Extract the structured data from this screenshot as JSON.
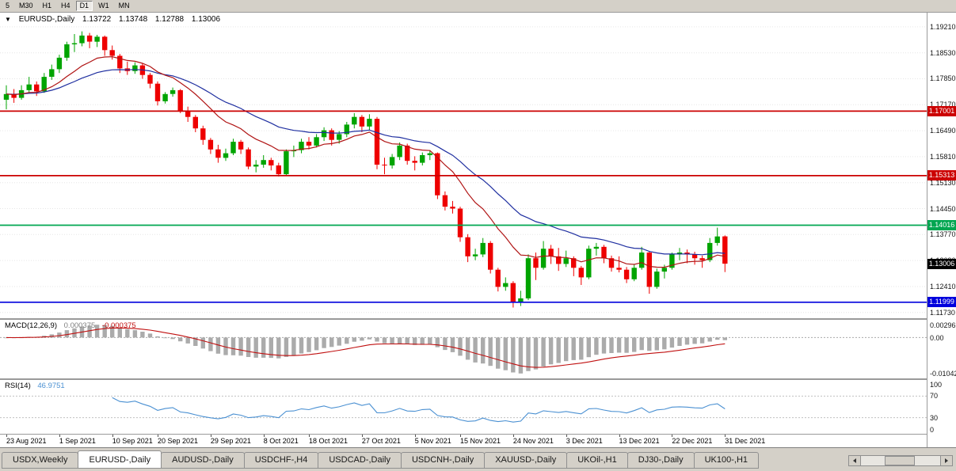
{
  "toolbar": {
    "timeframes": [
      {
        "label": "5",
        "active": false
      },
      {
        "label": "M30",
        "active": false
      },
      {
        "label": "H1",
        "active": false
      },
      {
        "label": "H4",
        "active": false
      },
      {
        "label": "D1",
        "active": true
      },
      {
        "label": "W1",
        "active": false
      },
      {
        "label": "MN",
        "active": false
      }
    ]
  },
  "quote_bar": {
    "symbol": "EURUSD-,Daily",
    "open": "1.13722",
    "high": "1.13748",
    "low": "1.12788",
    "close": "1.13006"
  },
  "price_axis": {
    "labels": [
      "1.19210",
      "1.18530",
      "1.17850",
      "1.17170",
      "1.16490",
      "1.15810",
      "1.15130",
      "1.14450",
      "1.13770",
      "1.13090",
      "1.12410",
      "1.11730"
    ],
    "values": [
      1.1921,
      1.1853,
      1.1785,
      1.1717,
      1.1649,
      1.1581,
      1.1513,
      1.1445,
      1.1377,
      1.1309,
      1.1241,
      1.1173
    ]
  },
  "hlines": [
    {
      "price": 1.17001,
      "label": "1.17001",
      "color": "#CC0000"
    },
    {
      "price": 1.15313,
      "label": "1.15313",
      "color": "#CC0000"
    },
    {
      "price": 1.14016,
      "label": "1.14016",
      "color": "#00A651"
    },
    {
      "price": 1.11999,
      "label": "1.11999",
      "color": "#0000DD"
    }
  ],
  "current_price": {
    "price": 1.13006,
    "label": "1.13006",
    "color": "#000000"
  },
  "macd": {
    "name": "MACD(12,26,9)",
    "value": "0.000375",
    "signal_value": "-0.000375",
    "axis_top": "0.002966",
    "axis_zero": "0.00",
    "axis_bottom": "-0.01042",
    "fast": 12,
    "slow": 26,
    "signal": 9
  },
  "rsi": {
    "name": "RSI(14)",
    "value": "46.9751",
    "period": 14,
    "axis_labels": [
      "100",
      "70",
      "30",
      "0"
    ],
    "levels": [
      70,
      30
    ]
  },
  "tabs": [
    {
      "label": "USDX,Weekly",
      "active": false
    },
    {
      "label": "EURUSD-,Daily",
      "active": true
    },
    {
      "label": "AUDUSD-,Daily",
      "active": false
    },
    {
      "label": "USDCHF-,H4",
      "active": false
    },
    {
      "label": "USDCAD-,Daily",
      "active": false
    },
    {
      "label": "USDCNH-,Daily",
      "active": false
    },
    {
      "label": "XAUUSD-,Daily",
      "active": false
    },
    {
      "label": "UKOil-,H1",
      "active": false
    },
    {
      "label": "DJ30-,Daily",
      "active": false
    },
    {
      "label": "UK100-,H1",
      "active": false
    }
  ],
  "colors": {
    "up": "#00A400",
    "down": "#EE0000",
    "ma_fast": "#B01414",
    "ma_slow": "#1F2FA0",
    "macd_hist": "#ABABAB",
    "macd_signal": "#C01010",
    "rsi_line": "#4A90D2",
    "grid": "#E6E6E6"
  },
  "chart_data": {
    "type": "candlestick",
    "title": "EURUSD-,Daily",
    "ylim": [
      1.1158,
      1.1958
    ],
    "x_labels": [
      {
        "index": 0,
        "label": "23 Aug 2021"
      },
      {
        "index": 7,
        "label": "1 Sep 2021"
      },
      {
        "index": 14,
        "label": "10 Sep 2021"
      },
      {
        "index": 20,
        "label": "20 Sep 2021"
      },
      {
        "index": 27,
        "label": "29 Sep 2021"
      },
      {
        "index": 34,
        "label": "8 Oct 2021"
      },
      {
        "index": 40,
        "label": "18 Oct 2021"
      },
      {
        "index": 47,
        "label": "27 Oct 2021"
      },
      {
        "index": 54,
        "label": "5 Nov 2021"
      },
      {
        "index": 60,
        "label": "15 Nov 2021"
      },
      {
        "index": 67,
        "label": "24 Nov 2021"
      },
      {
        "index": 74,
        "label": "3 Dec 2021"
      },
      {
        "index": 81,
        "label": "13 Dec 2021"
      },
      {
        "index": 88,
        "label": "22 Dec 2021"
      },
      {
        "index": 95,
        "label": "31 Dec 2021"
      }
    ],
    "overlays": [
      {
        "type": "ema",
        "period": 12,
        "color_key": "ma_fast"
      },
      {
        "type": "ema",
        "period": 26,
        "color_key": "ma_slow"
      }
    ],
    "panels": [
      "MACD(12,26,9)",
      "RSI(14)"
    ],
    "ohlc": [
      [
        1.173,
        1.1768,
        1.1705,
        1.1745
      ],
      [
        1.1745,
        1.1758,
        1.1722,
        1.1735
      ],
      [
        1.1735,
        1.1768,
        1.173,
        1.1755
      ],
      [
        1.1755,
        1.179,
        1.1748,
        1.177
      ],
      [
        1.177,
        1.1778,
        1.174,
        1.1752
      ],
      [
        1.1752,
        1.18,
        1.1748,
        1.179
      ],
      [
        1.179,
        1.1822,
        1.1782,
        1.181
      ],
      [
        1.181,
        1.1848,
        1.18,
        1.184
      ],
      [
        1.184,
        1.1882,
        1.1832,
        1.1875
      ],
      [
        1.1875,
        1.1902,
        1.1855,
        1.1878
      ],
      [
        1.1878,
        1.1909,
        1.187,
        1.1898
      ],
      [
        1.1898,
        1.1905,
        1.1865,
        1.1882
      ],
      [
        1.1882,
        1.19,
        1.1868,
        1.1895
      ],
      [
        1.1895,
        1.1898,
        1.1845,
        1.186
      ],
      [
        1.186,
        1.1872,
        1.1835,
        1.1845
      ],
      [
        1.1845,
        1.185,
        1.18,
        1.1812
      ],
      [
        1.1812,
        1.183,
        1.1795,
        1.1805
      ],
      [
        1.1805,
        1.1828,
        1.1798,
        1.182
      ],
      [
        1.182,
        1.1825,
        1.1785,
        1.1795
      ],
      [
        1.1795,
        1.18,
        1.176,
        1.1772
      ],
      [
        1.1772,
        1.1778,
        1.1715,
        1.1726
      ],
      [
        1.1726,
        1.175,
        1.172,
        1.1745
      ],
      [
        1.1745,
        1.1762,
        1.1738,
        1.1755
      ],
      [
        1.1755,
        1.1758,
        1.1695,
        1.17
      ],
      [
        1.17,
        1.1712,
        1.1672,
        1.1685
      ],
      [
        1.1685,
        1.169,
        1.1645,
        1.1655
      ],
      [
        1.1655,
        1.1662,
        1.1612,
        1.1625
      ],
      [
        1.1625,
        1.163,
        1.1588,
        1.16
      ],
      [
        1.16,
        1.1612,
        1.1565,
        1.1578
      ],
      [
        1.1578,
        1.1602,
        1.157,
        1.159
      ],
      [
        1.159,
        1.1628,
        1.1585,
        1.162
      ],
      [
        1.162,
        1.1625,
        1.1588,
        1.16
      ],
      [
        1.16,
        1.1605,
        1.1548,
        1.1555
      ],
      [
        1.1555,
        1.1572,
        1.154,
        1.156
      ],
      [
        1.156,
        1.1585,
        1.1552,
        1.1572
      ],
      [
        1.1572,
        1.1578,
        1.1545,
        1.1558
      ],
      [
        1.1558,
        1.1565,
        1.1529,
        1.1535
      ],
      [
        1.1535,
        1.16,
        1.1532,
        1.1595
      ],
      [
        1.1595,
        1.161,
        1.158,
        1.1598
      ],
      [
        1.1598,
        1.1628,
        1.159,
        1.162
      ],
      [
        1.162,
        1.1632,
        1.16,
        1.161
      ],
      [
        1.161,
        1.164,
        1.1605,
        1.1632
      ],
      [
        1.1632,
        1.1658,
        1.1622,
        1.165
      ],
      [
        1.165,
        1.1655,
        1.161,
        1.1625
      ],
      [
        1.1625,
        1.1648,
        1.1615,
        1.164
      ],
      [
        1.164,
        1.1672,
        1.1632,
        1.1665
      ],
      [
        1.1665,
        1.1695,
        1.1655,
        1.1685
      ],
      [
        1.1685,
        1.169,
        1.1645,
        1.166
      ],
      [
        1.166,
        1.1692,
        1.165,
        1.168
      ],
      [
        1.168,
        1.1685,
        1.1548,
        1.156
      ],
      [
        1.156,
        1.1578,
        1.1535,
        1.1558
      ],
      [
        1.1558,
        1.1588,
        1.155,
        1.158
      ],
      [
        1.158,
        1.1618,
        1.1572,
        1.161
      ],
      [
        1.161,
        1.1615,
        1.156,
        1.157
      ],
      [
        1.157,
        1.1582,
        1.1545,
        1.1565
      ],
      [
        1.1565,
        1.1592,
        1.1558,
        1.1585
      ],
      [
        1.1585,
        1.1598,
        1.1572,
        1.159
      ],
      [
        1.159,
        1.1592,
        1.147,
        1.148
      ],
      [
        1.148,
        1.149,
        1.144,
        1.145
      ],
      [
        1.145,
        1.1465,
        1.1432,
        1.1445
      ],
      [
        1.1445,
        1.145,
        1.1358,
        1.137
      ],
      [
        1.137,
        1.1378,
        1.1305,
        1.132
      ],
      [
        1.132,
        1.134,
        1.131,
        1.1325
      ],
      [
        1.1325,
        1.1368,
        1.1318,
        1.1355
      ],
      [
        1.1355,
        1.136,
        1.1275,
        1.1285
      ],
      [
        1.1285,
        1.129,
        1.1228,
        1.124
      ],
      [
        1.124,
        1.1265,
        1.123,
        1.125
      ],
      [
        1.125,
        1.1255,
        1.1186,
        1.12
      ],
      [
        1.12,
        1.123,
        1.119,
        1.121
      ],
      [
        1.121,
        1.1325,
        1.1205,
        1.1315
      ],
      [
        1.1315,
        1.133,
        1.1258,
        1.129
      ],
      [
        1.129,
        1.136,
        1.1285,
        1.134
      ],
      [
        1.134,
        1.135,
        1.13,
        1.132
      ],
      [
        1.132,
        1.1342,
        1.1282,
        1.13
      ],
      [
        1.13,
        1.1335,
        1.1292,
        1.1315
      ],
      [
        1.1315,
        1.132,
        1.1268,
        1.129
      ],
      [
        1.129,
        1.1295,
        1.1245,
        1.1265
      ],
      [
        1.1265,
        1.1348,
        1.126,
        1.134
      ],
      [
        1.134,
        1.1355,
        1.1322,
        1.1345
      ],
      [
        1.1345,
        1.135,
        1.1302,
        1.1315
      ],
      [
        1.1315,
        1.1322,
        1.128,
        1.129
      ],
      [
        1.129,
        1.132,
        1.1278,
        1.1285
      ],
      [
        1.1285,
        1.1292,
        1.125,
        1.126
      ],
      [
        1.126,
        1.1298,
        1.1255,
        1.129
      ],
      [
        1.129,
        1.1345,
        1.1285,
        1.133
      ],
      [
        1.133,
        1.1333,
        1.1222,
        1.124
      ],
      [
        1.124,
        1.1288,
        1.1235,
        1.128
      ],
      [
        1.128,
        1.1298,
        1.1262,
        1.129
      ],
      [
        1.129,
        1.133,
        1.1285,
        1.1325
      ],
      [
        1.1325,
        1.1342,
        1.131,
        1.133
      ],
      [
        1.133,
        1.1338,
        1.1302,
        1.1325
      ],
      [
        1.1325,
        1.1332,
        1.1298,
        1.1315
      ],
      [
        1.1315,
        1.1322,
        1.129,
        1.131
      ],
      [
        1.131,
        1.1368,
        1.1305,
        1.1355
      ],
      [
        1.1355,
        1.1395,
        1.1348,
        1.1372
      ],
      [
        1.13722,
        1.13748,
        1.12788,
        1.13006
      ]
    ]
  }
}
